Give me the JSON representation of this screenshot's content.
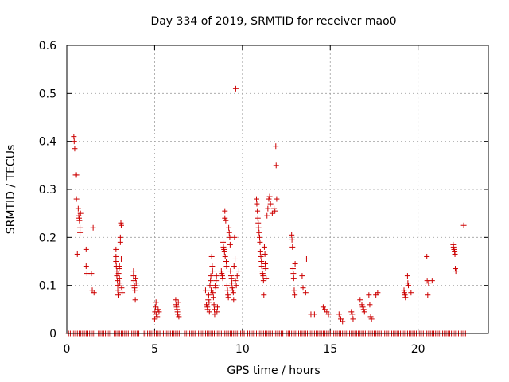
{
  "chart_data": {
    "type": "scatter",
    "title": "Day 334 of 2019, SRMTID for receiver mao0",
    "xlabel": "GPS time / hours",
    "ylabel": "SRMTID / TECUs",
    "xlim": [
      0,
      24
    ],
    "ylim": [
      0,
      0.6
    ],
    "xticks": [
      "0",
      "5",
      "10",
      "15",
      "20"
    ],
    "xtick_values": [
      0,
      5,
      10,
      15,
      20
    ],
    "yticks": [
      "0",
      "0.1",
      "0.2",
      "0.3",
      "0.4",
      "0.5",
      "0.6"
    ],
    "ytick_values": [
      0,
      0.1,
      0.2,
      0.3,
      0.4,
      0.5,
      0.6
    ],
    "grid": true,
    "marker": "+",
    "series": [
      {
        "name": "SRMTID",
        "color": "#cc0000",
        "points": [
          [
            0.4,
            0.41
          ],
          [
            0.42,
            0.4
          ],
          [
            0.45,
            0.385
          ],
          [
            0.5,
            0.33
          ],
          [
            0.55,
            0.33
          ],
          [
            0.55,
            0.28
          ],
          [
            0.6,
            0.165
          ],
          [
            0.65,
            0.26
          ],
          [
            0.68,
            0.245
          ],
          [
            0.7,
            0.24
          ],
          [
            0.72,
            0.235
          ],
          [
            0.75,
            0.22
          ],
          [
            0.75,
            0.21
          ],
          [
            0.78,
            0.25
          ],
          [
            1.1,
            0.175
          ],
          [
            1.1,
            0.14
          ],
          [
            1.15,
            0.125
          ],
          [
            1.4,
            0.125
          ],
          [
            1.45,
            0.09
          ],
          [
            1.5,
            0.22
          ],
          [
            1.55,
            0.085
          ],
          [
            2.8,
            0.175
          ],
          [
            2.8,
            0.16
          ],
          [
            2.8,
            0.15
          ],
          [
            2.82,
            0.14
          ],
          [
            2.85,
            0.13
          ],
          [
            2.85,
            0.12
          ],
          [
            2.88,
            0.11
          ],
          [
            2.9,
            0.1
          ],
          [
            2.9,
            0.09
          ],
          [
            2.92,
            0.08
          ],
          [
            2.95,
            0.125
          ],
          [
            2.98,
            0.135
          ],
          [
            3.0,
            0.14
          ],
          [
            3.0,
            0.115
          ],
          [
            3.02,
            0.105
          ],
          [
            3.05,
            0.2
          ],
          [
            3.05,
            0.19
          ],
          [
            3.08,
            0.23
          ],
          [
            3.1,
            0.225
          ],
          [
            3.1,
            0.155
          ],
          [
            3.12,
            0.095
          ],
          [
            3.15,
            0.085
          ],
          [
            3.8,
            0.13
          ],
          [
            3.8,
            0.12
          ],
          [
            3.82,
            0.11
          ],
          [
            3.85,
            0.1
          ],
          [
            3.85,
            0.095
          ],
          [
            3.88,
            0.09
          ],
          [
            3.9,
            0.07
          ],
          [
            3.92,
            0.115
          ],
          [
            3.95,
            0.105
          ],
          [
            5.0,
            0.03
          ],
          [
            5.02,
            0.045
          ],
          [
            5.05,
            0.055
          ],
          [
            5.08,
            0.065
          ],
          [
            5.1,
            0.04
          ],
          [
            5.15,
            0.035
          ],
          [
            5.2,
            0.05
          ],
          [
            5.25,
            0.045
          ],
          [
            6.2,
            0.07
          ],
          [
            6.22,
            0.06
          ],
          [
            6.25,
            0.055
          ],
          [
            6.28,
            0.05
          ],
          [
            6.3,
            0.045
          ],
          [
            6.32,
            0.04
          ],
          [
            6.35,
            0.065
          ],
          [
            6.38,
            0.035
          ],
          [
            7.9,
            0.09
          ],
          [
            7.95,
            0.06
          ],
          [
            8.0,
            0.055
          ],
          [
            8.02,
            0.05
          ],
          [
            8.05,
            0.07
          ],
          [
            8.08,
            0.08
          ],
          [
            8.1,
            0.065
          ],
          [
            8.12,
            0.045
          ],
          [
            8.15,
            0.1
          ],
          [
            8.18,
            0.11
          ],
          [
            8.2,
            0.12
          ],
          [
            8.22,
            0.09
          ],
          [
            8.25,
            0.16
          ],
          [
            8.28,
            0.14
          ],
          [
            8.3,
            0.13
          ],
          [
            8.32,
            0.085
          ],
          [
            8.35,
            0.075
          ],
          [
            8.38,
            0.06
          ],
          [
            8.4,
            0.05
          ],
          [
            8.42,
            0.04
          ],
          [
            8.45,
            0.1
          ],
          [
            8.48,
            0.095
          ],
          [
            8.5,
            0.11
          ],
          [
            8.52,
            0.12
          ],
          [
            8.55,
            0.045
          ],
          [
            8.58,
            0.055
          ],
          [
            8.8,
            0.13
          ],
          [
            8.82,
            0.125
          ],
          [
            8.85,
            0.12
          ],
          [
            8.88,
            0.115
          ],
          [
            8.9,
            0.19
          ],
          [
            8.92,
            0.18
          ],
          [
            8.95,
            0.175
          ],
          [
            8.98,
            0.17
          ],
          [
            9.0,
            0.255
          ],
          [
            9.0,
            0.24
          ],
          [
            9.02,
            0.16
          ],
          [
            9.05,
            0.235
          ],
          [
            9.08,
            0.15
          ],
          [
            9.1,
            0.14
          ],
          [
            9.12,
            0.1
          ],
          [
            9.15,
            0.09
          ],
          [
            9.18,
            0.08
          ],
          [
            9.2,
            0.075
          ],
          [
            9.22,
            0.22
          ],
          [
            9.25,
            0.21
          ],
          [
            9.28,
            0.2
          ],
          [
            9.3,
            0.185
          ],
          [
            9.32,
            0.13
          ],
          [
            9.35,
            0.12
          ],
          [
            9.38,
            0.115
          ],
          [
            9.4,
            0.105
          ],
          [
            9.42,
            0.095
          ],
          [
            9.45,
            0.09
          ],
          [
            9.48,
            0.085
          ],
          [
            9.5,
            0.07
          ],
          [
            9.52,
            0.14
          ],
          [
            9.55,
            0.2
          ],
          [
            9.58,
            0.155
          ],
          [
            9.6,
            0.11
          ],
          [
            9.62,
            0.51
          ],
          [
            9.65,
            0.1
          ],
          [
            9.7,
            0.12
          ],
          [
            9.8,
            0.13
          ],
          [
            10.8,
            0.28
          ],
          [
            10.82,
            0.27
          ],
          [
            10.85,
            0.255
          ],
          [
            10.88,
            0.24
          ],
          [
            10.9,
            0.23
          ],
          [
            10.92,
            0.22
          ],
          [
            10.95,
            0.21
          ],
          [
            10.98,
            0.2
          ],
          [
            11.0,
            0.19
          ],
          [
            11.02,
            0.17
          ],
          [
            11.05,
            0.16
          ],
          [
            11.08,
            0.15
          ],
          [
            11.1,
            0.14
          ],
          [
            11.12,
            0.13
          ],
          [
            11.15,
            0.125
          ],
          [
            11.18,
            0.12
          ],
          [
            11.2,
            0.11
          ],
          [
            11.22,
            0.08
          ],
          [
            11.25,
            0.18
          ],
          [
            11.28,
            0.165
          ],
          [
            11.3,
            0.145
          ],
          [
            11.32,
            0.135
          ],
          [
            11.35,
            0.115
          ],
          [
            11.4,
            0.245
          ],
          [
            11.45,
            0.26
          ],
          [
            11.5,
            0.28
          ],
          [
            11.55,
            0.285
          ],
          [
            11.6,
            0.27
          ],
          [
            11.7,
            0.25
          ],
          [
            11.8,
            0.26
          ],
          [
            11.85,
            0.255
          ],
          [
            11.9,
            0.39
          ],
          [
            11.92,
            0.35
          ],
          [
            11.95,
            0.28
          ],
          [
            12.8,
            0.205
          ],
          [
            12.82,
            0.195
          ],
          [
            12.85,
            0.18
          ],
          [
            12.88,
            0.135
          ],
          [
            12.9,
            0.125
          ],
          [
            12.92,
            0.115
          ],
          [
            12.95,
            0.09
          ],
          [
            12.98,
            0.08
          ],
          [
            13.0,
            0.145
          ],
          [
            13.4,
            0.12
          ],
          [
            13.45,
            0.095
          ],
          [
            13.6,
            0.085
          ],
          [
            13.65,
            0.155
          ],
          [
            13.9,
            0.04
          ],
          [
            14.1,
            0.04
          ],
          [
            14.6,
            0.055
          ],
          [
            14.7,
            0.05
          ],
          [
            14.8,
            0.045
          ],
          [
            14.9,
            0.04
          ],
          [
            15.5,
            0.04
          ],
          [
            15.6,
            0.03
          ],
          [
            15.7,
            0.025
          ],
          [
            16.2,
            0.045
          ],
          [
            16.25,
            0.04
          ],
          [
            16.3,
            0.03
          ],
          [
            16.7,
            0.07
          ],
          [
            16.8,
            0.06
          ],
          [
            16.85,
            0.055
          ],
          [
            16.9,
            0.05
          ],
          [
            16.95,
            0.045
          ],
          [
            17.2,
            0.08
          ],
          [
            17.25,
            0.06
          ],
          [
            17.3,
            0.035
          ],
          [
            17.35,
            0.03
          ],
          [
            17.6,
            0.08
          ],
          [
            17.7,
            0.085
          ],
          [
            19.2,
            0.09
          ],
          [
            19.22,
            0.085
          ],
          [
            19.25,
            0.08
          ],
          [
            19.28,
            0.075
          ],
          [
            19.4,
            0.12
          ],
          [
            19.42,
            0.105
          ],
          [
            19.45,
            0.1
          ],
          [
            19.6,
            0.085
          ],
          [
            20.5,
            0.16
          ],
          [
            20.52,
            0.11
          ],
          [
            20.55,
            0.08
          ],
          [
            20.6,
            0.105
          ],
          [
            20.8,
            0.11
          ],
          [
            22.0,
            0.185
          ],
          [
            22.02,
            0.18
          ],
          [
            22.05,
            0.175
          ],
          [
            22.08,
            0.17
          ],
          [
            22.1,
            0.165
          ],
          [
            22.12,
            0.135
          ],
          [
            22.15,
            0.13
          ],
          [
            22.6,
            0.225
          ]
        ]
      }
    ],
    "zero_line": {
      "y": 0,
      "x_start": 0.1,
      "x_end": 22.7,
      "x_step": 0.1,
      "skip_ranges": [
        [
          1.7,
          1.75
        ],
        [
          2.6,
          2.65
        ],
        [
          4.2,
          4.3
        ],
        [
          5.4,
          5.45
        ],
        [
          6.6,
          6.65
        ],
        [
          7.4,
          7.45
        ],
        [
          10.2,
          10.25
        ],
        [
          12.4,
          12.45
        ]
      ]
    }
  }
}
